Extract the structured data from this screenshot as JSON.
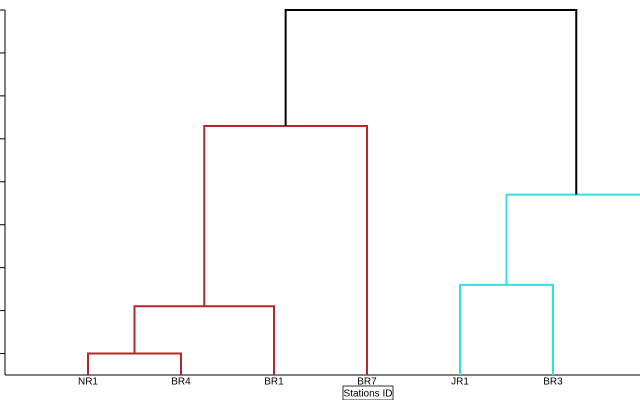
{
  "chart_data": {
    "type": "dendrogram",
    "categories": [
      "NR1",
      "BR4",
      "BR1",
      "BR7",
      "JR1",
      "BR3",
      null
    ],
    "links": [
      {
        "a": 0,
        "b": 1,
        "height": 0,
        "color": "#b5262a"
      },
      {
        "a": 7,
        "b": 2,
        "height": 1.1,
        "color": "#b5262a"
      },
      {
        "a": 8,
        "b": 3,
        "height": 5.3,
        "color": "#b5262a"
      },
      {
        "a": 4,
        "b": 5,
        "height": 1.6,
        "color": "#33e0e0"
      },
      {
        "a": 10,
        "b": 6,
        "height": 3.7,
        "color": "#33e0e0"
      },
      {
        "a": 9,
        "b": 11,
        "height": 8,
        "color": "#000000"
      }
    ],
    "xlabel": "Stations ID",
    "ylim": [
      -0.5,
      8
    ],
    "yticks": [
      0,
      1,
      2,
      3,
      4,
      5,
      6,
      7,
      8
    ]
  }
}
